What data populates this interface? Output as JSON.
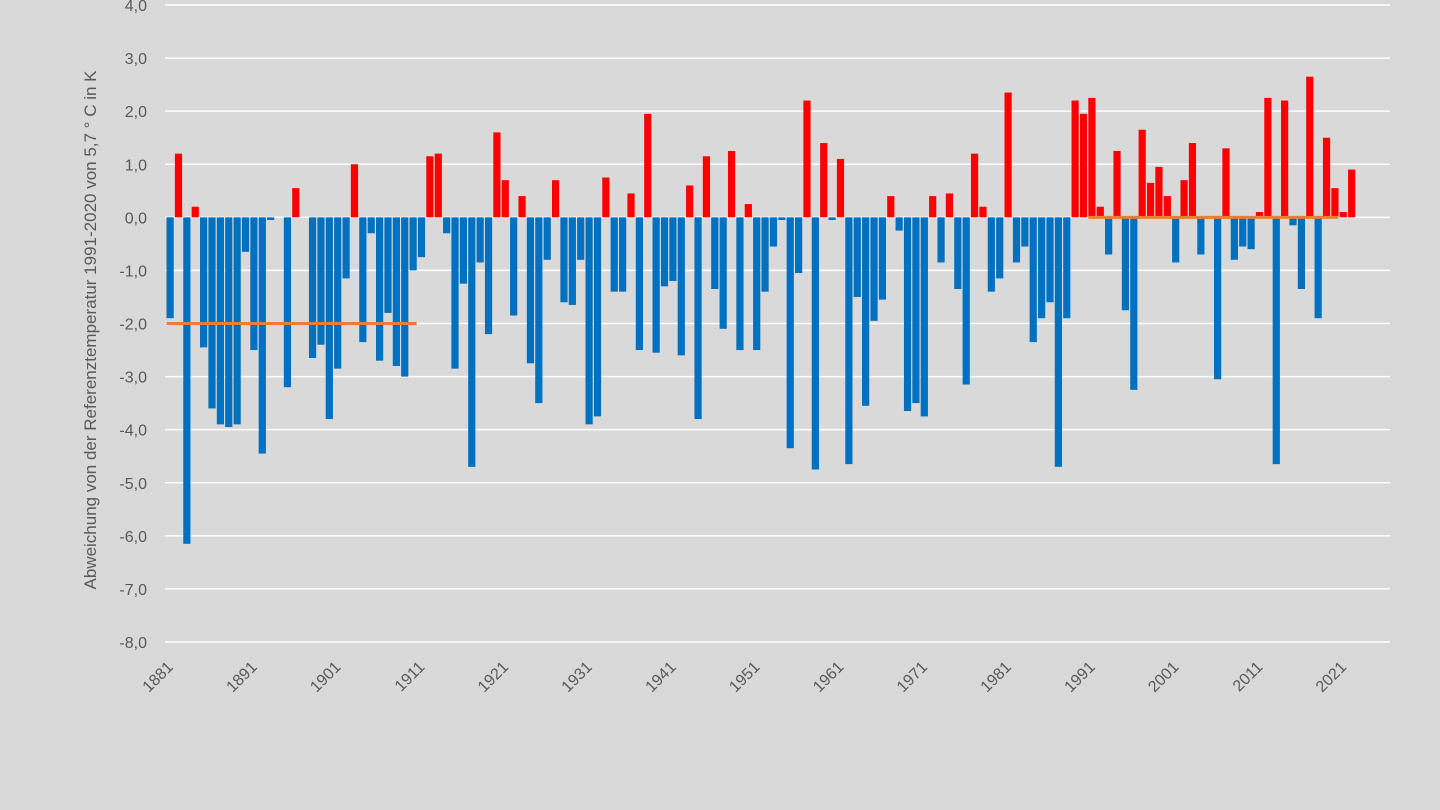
{
  "chart_data": {
    "type": "bar",
    "ylabel": "Abweichung von der Referenztemperatur 1991-2020 von 5,7 ° C in K",
    "ylim": [
      -8,
      4
    ],
    "y_ticks": [
      "-8,0",
      "-7,0",
      "-6,0",
      "-5,0",
      "-4,0",
      "-3,0",
      "-2,0",
      "-1,0",
      "0,0",
      "1,0",
      "2,0",
      "3,0",
      "4,0"
    ],
    "x_tick_labels": [
      "1881",
      "1891",
      "1901",
      "1911",
      "1921",
      "1931",
      "1941",
      "1951",
      "1961",
      "1971",
      "1981",
      "1991",
      "2001",
      "2011",
      "2021"
    ],
    "years": [
      1881,
      1882,
      1883,
      1884,
      1885,
      1886,
      1887,
      1888,
      1889,
      1890,
      1891,
      1892,
      1893,
      1894,
      1895,
      1896,
      1897,
      1898,
      1899,
      1900,
      1901,
      1902,
      1903,
      1904,
      1905,
      1906,
      1907,
      1908,
      1909,
      1910,
      1911,
      1912,
      1913,
      1914,
      1915,
      1916,
      1917,
      1918,
      1919,
      1920,
      1921,
      1922,
      1923,
      1924,
      1925,
      1926,
      1927,
      1928,
      1929,
      1930,
      1931,
      1932,
      1933,
      1934,
      1935,
      1936,
      1937,
      1938,
      1939,
      1940,
      1941,
      1942,
      1943,
      1944,
      1945,
      1946,
      1947,
      1948,
      1949,
      1950,
      1951,
      1952,
      1953,
      1954,
      1955,
      1956,
      1957,
      1958,
      1959,
      1960,
      1961,
      1962,
      1963,
      1964,
      1965,
      1966,
      1967,
      1968,
      1969,
      1970,
      1971,
      1972,
      1973,
      1974,
      1975,
      1976,
      1977,
      1978,
      1979,
      1980,
      1981,
      1982,
      1983,
      1984,
      1985,
      1986,
      1987,
      1988,
      1989,
      1990,
      1991,
      1992,
      1993,
      1994,
      1995,
      1996,
      1997,
      1998,
      1999,
      2000,
      2001,
      2002,
      2003,
      2004,
      2005,
      2006,
      2007,
      2008,
      2009,
      2010,
      2011,
      2012,
      2013,
      2014,
      2015,
      2016,
      2017,
      2018,
      2019,
      2020,
      2021,
      2022
    ],
    "values": [
      -1.9,
      1.2,
      -6.15,
      0.2,
      -2.45,
      -3.6,
      -3.9,
      -3.95,
      -3.9,
      -0.65,
      -2.5,
      -4.45,
      -0.05,
      0,
      -3.2,
      0.55,
      0,
      -2.65,
      -2.4,
      -3.8,
      -2.85,
      -1.15,
      1.0,
      -2.35,
      -0.3,
      -2.7,
      -1.8,
      -2.8,
      -3.0,
      -1.0,
      -0.75,
      1.15,
      1.2,
      -0.3,
      -2.85,
      -1.25,
      -4.7,
      -0.85,
      -2.2,
      1.6,
      0.7,
      -1.85,
      0.4,
      -2.75,
      -3.5,
      -0.8,
      0.7,
      -1.6,
      -1.65,
      -0.8,
      -3.9,
      -3.75,
      0.75,
      -1.4,
      -1.4,
      0.45,
      -2.5,
      1.95,
      -2.55,
      -1.3,
      -1.2,
      -2.6,
      0.6,
      -3.8,
      1.15,
      -1.35,
      -2.1,
      1.25,
      -2.5,
      0.25,
      -2.5,
      -1.4,
      -0.55,
      -0.05,
      -4.35,
      -1.05,
      2.2,
      -4.75,
      1.4,
      -0.05,
      1.1,
      -4.65,
      -1.5,
      -3.55,
      -1.95,
      -1.55,
      0.4,
      -0.25,
      -3.65,
      -3.5,
      -3.75,
      0.4,
      -0.85,
      0.45,
      -1.35,
      -3.15,
      1.2,
      0.2,
      -1.4,
      -1.15,
      2.35,
      -0.85,
      -0.55,
      -2.35,
      -1.9,
      -1.6,
      -4.7,
      -1.9,
      2.2,
      1.95,
      2.25,
      0.2,
      -0.7,
      1.25,
      -1.75,
      -3.25,
      1.65,
      0.65,
      0.95,
      0.4,
      -0.85,
      0.7,
      1.4,
      -0.7,
      0,
      -3.05,
      1.3,
      -0.8,
      -0.55,
      -0.6,
      0.1,
      2.25,
      -4.65,
      2.2,
      -0.15,
      -1.35,
      2.65,
      -1.9,
      1.5,
      0.55,
      0.1,
      0.9
    ],
    "reference_lines": [
      {
        "from": 1881,
        "to": 1910,
        "value": -2.0
      },
      {
        "from": 1991,
        "to": 2020,
        "value": 0.0
      }
    ],
    "colors": {
      "positive": "#ff0000",
      "negative": "#0070c0",
      "reference_line": "#ed7d31",
      "gridline": "#ffffff",
      "background": "#d9d9d9",
      "text": "#595959"
    },
    "grid": true
  }
}
